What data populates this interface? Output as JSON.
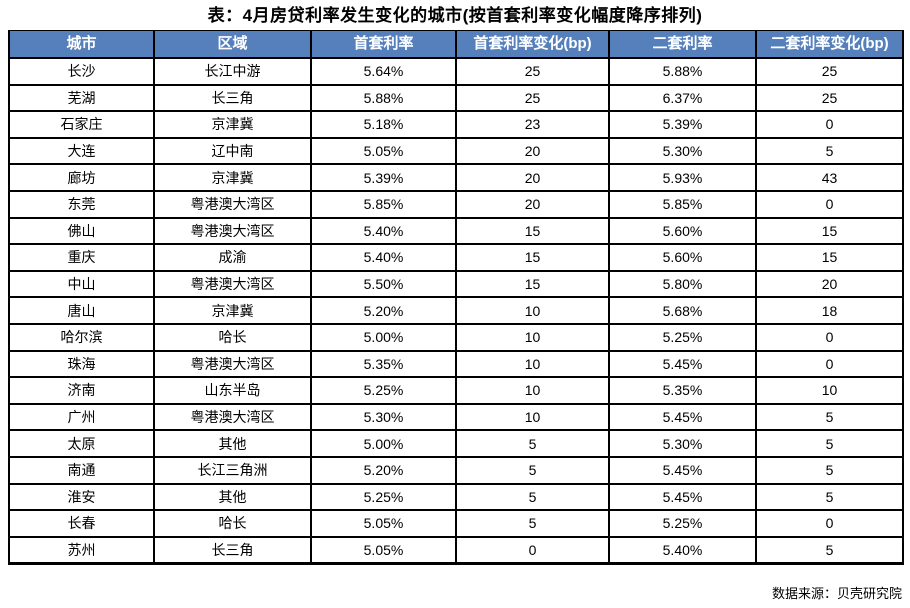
{
  "title": "表：4月房贷利率发生变化的城市(按首套利率变化幅度降序排列)",
  "source": "数据来源：贝壳研究院",
  "colors": {
    "header_bg": "#5680BC",
    "header_text": "#FFFFFF",
    "border": "#000000",
    "cell_bg": "#FFFFFF",
    "cell_text": "#000000"
  },
  "table": {
    "headers": [
      "城市",
      "区域",
      "首套利率",
      "首套利率变化(bp)",
      "二套利率",
      "二套利率变化(bp)"
    ],
    "rows": [
      [
        "长沙",
        "长江中游",
        "5.64%",
        "25",
        "5.88%",
        "25"
      ],
      [
        "芜湖",
        "长三角",
        "5.88%",
        "25",
        "6.37%",
        "25"
      ],
      [
        "石家庄",
        "京津冀",
        "5.18%",
        "23",
        "5.39%",
        "0"
      ],
      [
        "大连",
        "辽中南",
        "5.05%",
        "20",
        "5.30%",
        "5"
      ],
      [
        "廊坊",
        "京津冀",
        "5.39%",
        "20",
        "5.93%",
        "43"
      ],
      [
        "东莞",
        "粤港澳大湾区",
        "5.85%",
        "20",
        "5.85%",
        "0"
      ],
      [
        "佛山",
        "粤港澳大湾区",
        "5.40%",
        "15",
        "5.60%",
        "15"
      ],
      [
        "重庆",
        "成渝",
        "5.40%",
        "15",
        "5.60%",
        "15"
      ],
      [
        "中山",
        "粤港澳大湾区",
        "5.50%",
        "15",
        "5.80%",
        "20"
      ],
      [
        "唐山",
        "京津冀",
        "5.20%",
        "10",
        "5.68%",
        "18"
      ],
      [
        "哈尔滨",
        "哈长",
        "5.00%",
        "10",
        "5.25%",
        "0"
      ],
      [
        "珠海",
        "粤港澳大湾区",
        "5.35%",
        "10",
        "5.45%",
        "0"
      ],
      [
        "济南",
        "山东半岛",
        "5.25%",
        "10",
        "5.35%",
        "10"
      ],
      [
        "广州",
        "粤港澳大湾区",
        "5.30%",
        "10",
        "5.45%",
        "5"
      ],
      [
        "太原",
        "其他",
        "5.00%",
        "5",
        "5.30%",
        "5"
      ],
      [
        "南通",
        "长江三角洲",
        "5.20%",
        "5",
        "5.45%",
        "5"
      ],
      [
        "淮安",
        "其他",
        "5.25%",
        "5",
        "5.45%",
        "5"
      ],
      [
        "长春",
        "哈长",
        "5.05%",
        "5",
        "5.25%",
        "0"
      ],
      [
        "苏州",
        "长三角",
        "5.05%",
        "0",
        "5.40%",
        "5"
      ]
    ]
  }
}
